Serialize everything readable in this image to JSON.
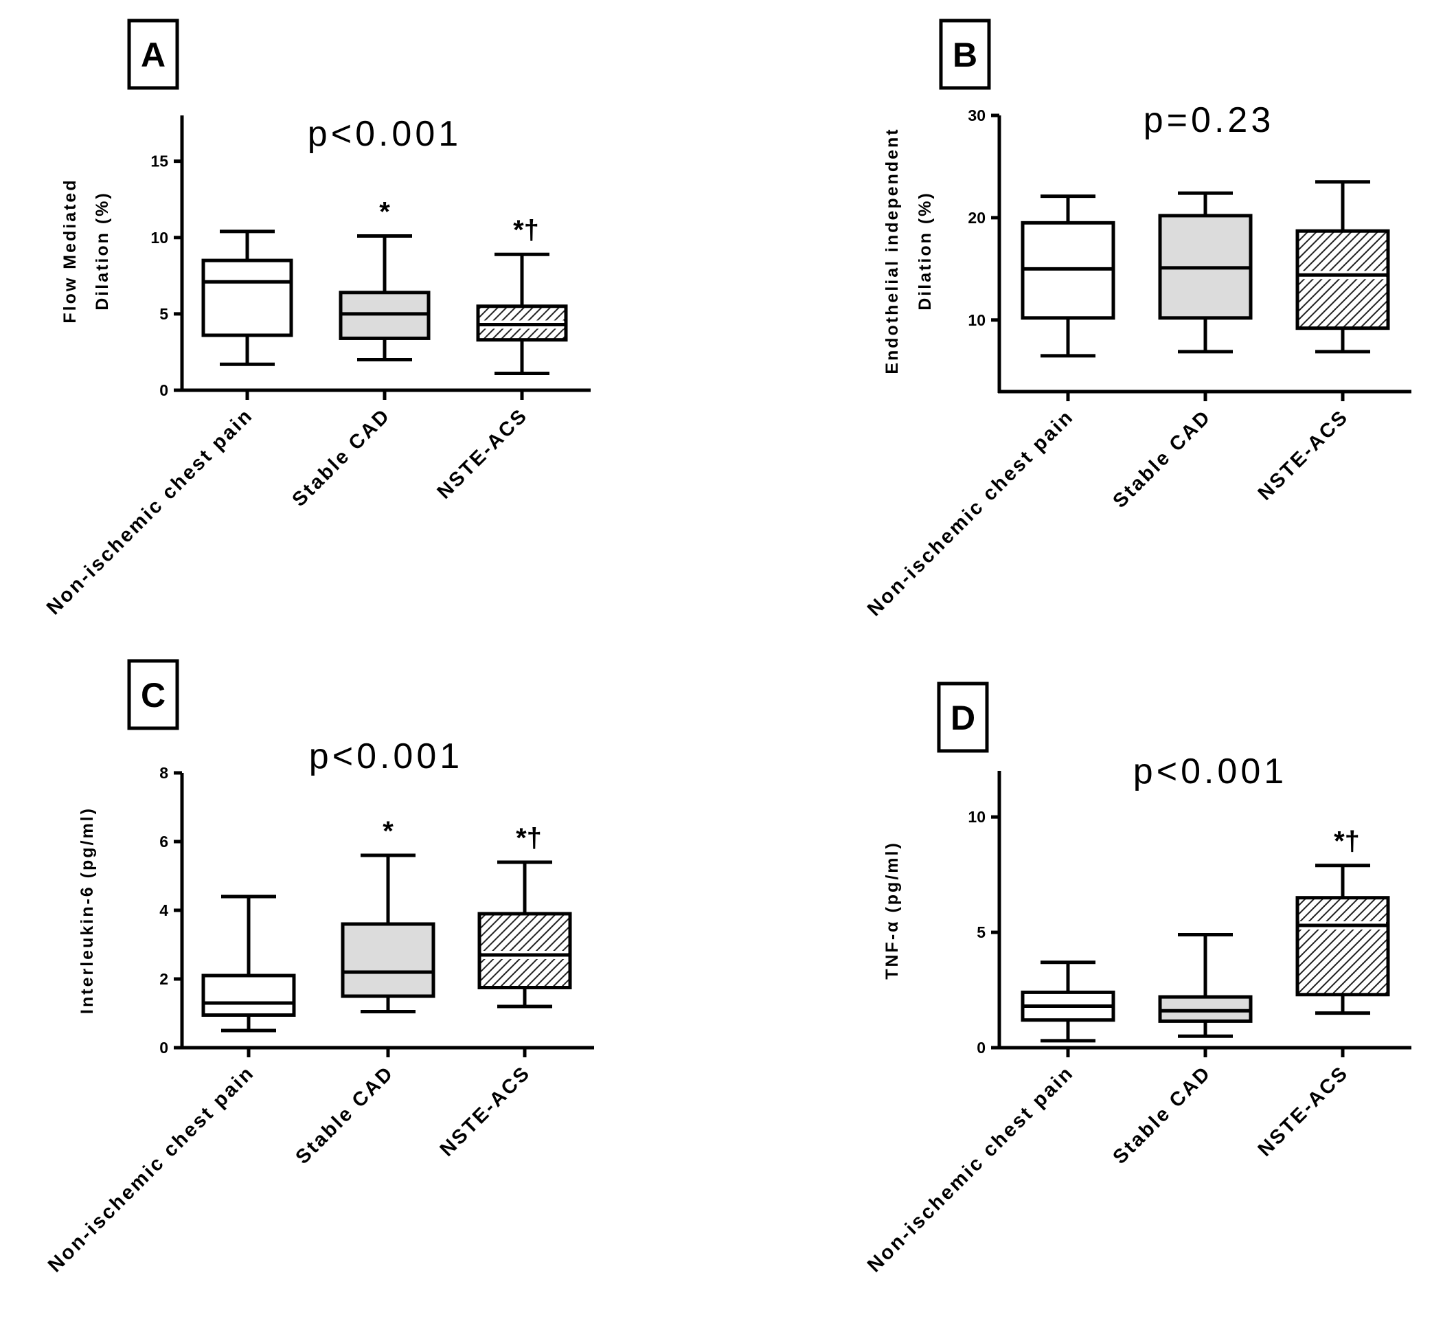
{
  "chart_data": [
    {
      "panel": "A",
      "type": "boxplot",
      "title": "p<0.001",
      "xlabel": "",
      "ylabel": [
        "Flow Mediated",
        "Dilation (%)"
      ],
      "ylim": [
        0,
        18
      ],
      "yticks": [
        0,
        5,
        10,
        15
      ],
      "categories": [
        "Non-ischemic chest pain",
        "Stable CAD",
        "NSTE-ACS"
      ],
      "boxes": [
        {
          "min": 1.7,
          "q1": 3.6,
          "median": 7.1,
          "q3": 8.5,
          "max": 10.4,
          "fill": "white",
          "mark": ""
        },
        {
          "min": 2.0,
          "q1": 3.4,
          "median": 5.0,
          "q3": 6.4,
          "max": 10.1,
          "fill": "gray",
          "mark": "*"
        },
        {
          "min": 1.1,
          "q1": 3.3,
          "median": 4.3,
          "q3": 5.5,
          "max": 8.9,
          "fill": "hatch",
          "mark": "*†"
        }
      ]
    },
    {
      "panel": "B",
      "type": "boxplot",
      "title": "p=0.23",
      "xlabel": "",
      "ylabel": [
        "Endothelial independent",
        "Dilation (%)"
      ],
      "ylim": [
        3,
        30
      ],
      "yticks": [
        10,
        20,
        30
      ],
      "categories": [
        "Non-ischemic chest pain",
        "Stable CAD",
        "NSTE-ACS"
      ],
      "boxes": [
        {
          "min": 6.5,
          "q1": 10.2,
          "median": 15.0,
          "q3": 19.5,
          "max": 22.1,
          "fill": "white",
          "mark": ""
        },
        {
          "min": 6.9,
          "q1": 10.2,
          "median": 15.1,
          "q3": 20.2,
          "max": 22.4,
          "fill": "gray",
          "mark": ""
        },
        {
          "min": 6.9,
          "q1": 9.2,
          "median": 14.4,
          "q3": 18.7,
          "max": 23.5,
          "fill": "hatch",
          "mark": ""
        }
      ]
    },
    {
      "panel": "C",
      "type": "boxplot",
      "title": "p<0.001",
      "xlabel": "",
      "ylabel": [
        "Interleukin-6 (pg/ml)"
      ],
      "ylim": [
        0,
        8
      ],
      "yticks": [
        0,
        2,
        4,
        6,
        8
      ],
      "categories": [
        "Non-ischemic chest pain",
        "Stable CAD",
        "NSTE-ACS"
      ],
      "boxes": [
        {
          "min": 0.5,
          "q1": 0.95,
          "median": 1.3,
          "q3": 2.1,
          "max": 4.4,
          "fill": "white",
          "mark": ""
        },
        {
          "min": 1.05,
          "q1": 1.5,
          "median": 2.2,
          "q3": 3.6,
          "max": 5.6,
          "fill": "gray",
          "mark": "*"
        },
        {
          "min": 1.2,
          "q1": 1.75,
          "median": 2.7,
          "q3": 3.9,
          "max": 5.4,
          "fill": "hatch",
          "mark": "*†"
        }
      ]
    },
    {
      "panel": "D",
      "type": "boxplot",
      "title": "p<0.001",
      "xlabel": "",
      "ylabel": [
        "TNF-α (pg/ml)"
      ],
      "ylim": [
        0,
        12
      ],
      "yticks": [
        0,
        5,
        10
      ],
      "categories": [
        "Non-ischemic chest pain",
        "Stable CAD",
        "NSTE-ACS"
      ],
      "boxes": [
        {
          "min": 0.3,
          "q1": 1.2,
          "median": 1.8,
          "q3": 2.4,
          "max": 3.7,
          "fill": "white",
          "mark": ""
        },
        {
          "min": 0.5,
          "q1": 1.15,
          "median": 1.6,
          "q3": 2.2,
          "max": 4.9,
          "fill": "gray",
          "mark": ""
        },
        {
          "min": 1.5,
          "q1": 2.3,
          "median": 5.3,
          "q3": 6.5,
          "max": 7.9,
          "fill": "hatch",
          "mark": "*†"
        }
      ]
    }
  ]
}
